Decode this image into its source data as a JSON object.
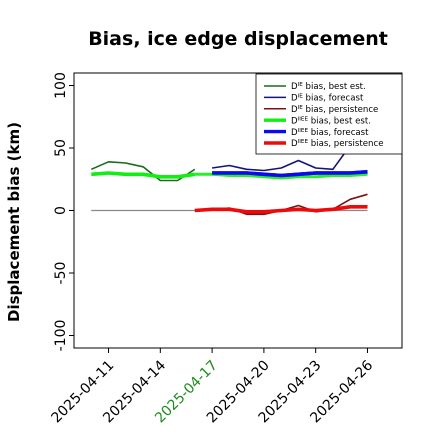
{
  "chart_data": {
    "type": "line",
    "title": "Bias, ice edge displacement",
    "xlabel": "",
    "ylabel": "Displacement bias (km)",
    "ylim": [
      -110,
      110
    ],
    "xlim": [
      "2025-04-09",
      "2025-04-28"
    ],
    "x_ticks": [
      "2025-04-11",
      "2025-04-14",
      "2025-04-17",
      "2025-04-20",
      "2025-04-23",
      "2025-04-26"
    ],
    "highlight_tick": "2025-04-17",
    "highlight_color": "#1e8c1e",
    "y_ticks": [
      -100,
      -50,
      0,
      50,
      100
    ],
    "grid": false,
    "legend_position": "top-right",
    "zero_line": {
      "y": 0,
      "x_start": "2025-04-10",
      "x_end": "2025-04-26",
      "color": "#888888"
    },
    "series": [
      {
        "name_prefix": "D",
        "name_sup": "IE",
        "name_suffix": " bias, best est.",
        "color": "#1a6b1a",
        "width": 1.6,
        "x": [
          "2025-04-10",
          "2025-04-11",
          "2025-04-12",
          "2025-04-13",
          "2025-04-14",
          "2025-04-15",
          "2025-04-16"
        ],
        "y": [
          33,
          39,
          38,
          35,
          24,
          24,
          33
        ]
      },
      {
        "name_prefix": "D",
        "name_sup": "IE",
        "name_suffix": " bias, forecast",
        "color": "#14147a",
        "width": 1.6,
        "x": [
          "2025-04-17",
          "2025-04-18",
          "2025-04-19",
          "2025-04-20",
          "2025-04-21",
          "2025-04-22",
          "2025-04-23",
          "2025-04-24",
          "2025-04-25",
          "2025-04-26"
        ],
        "y": [
          34,
          36,
          33,
          32,
          34,
          40,
          34,
          33,
          52,
          52
        ]
      },
      {
        "name_prefix": "D",
        "name_sup": "IE",
        "name_suffix": " bias, persistence",
        "color": "#7a1414",
        "width": 1.6,
        "x": [
          "2025-04-16",
          "2025-04-17",
          "2025-04-18",
          "2025-04-19",
          "2025-04-20",
          "2025-04-21",
          "2025-04-22",
          "2025-04-23",
          "2025-04-24",
          "2025-04-25",
          "2025-04-26"
        ],
        "y": [
          0,
          1,
          2,
          -3,
          -3,
          0,
          4,
          -1,
          1,
          9,
          13
        ]
      },
      {
        "name_prefix": "D",
        "name_sup": "IIEE",
        "name_suffix": " bias, best est.",
        "color": "#11ee11",
        "width": 3.6,
        "x": [
          "2025-04-10",
          "2025-04-11",
          "2025-04-12",
          "2025-04-13",
          "2025-04-14",
          "2025-04-15",
          "2025-04-16"
        ],
        "y": [
          29,
          30,
          29,
          29,
          27,
          27,
          29
        ]
      },
      {
        "name_prefix": "D",
        "name_sup": "IIEE",
        "name_suffix": " bias, forecast",
        "color": "#0a0aee",
        "width": 3.6,
        "x": [
          "2025-04-17",
          "2025-04-18",
          "2025-04-19",
          "2025-04-20",
          "2025-04-21",
          "2025-04-22",
          "2025-04-23",
          "2025-04-24",
          "2025-04-25",
          "2025-04-26"
        ],
        "y": [
          30,
          30,
          30,
          29,
          28,
          29,
          30,
          30,
          30,
          31
        ]
      },
      {
        "name_prefix": "D",
        "name_sup": "IIEE",
        "name_suffix": " bias, persistence",
        "color": "#ee0a0a",
        "width": 3.6,
        "x": [
          "2025-04-16",
          "2025-04-17",
          "2025-04-18",
          "2025-04-19",
          "2025-04-20",
          "2025-04-21",
          "2025-04-22",
          "2025-04-23",
          "2025-04-24",
          "2025-04-25",
          "2025-04-26"
        ],
        "y": [
          0,
          1,
          1,
          -1,
          -1,
          0,
          1,
          0,
          1,
          3,
          3
        ]
      }
    ],
    "overlap_series": {
      "color": "#11ee11",
      "width": 3.0,
      "x": [
        "2025-04-16",
        "2025-04-17",
        "2025-04-18",
        "2025-04-19",
        "2025-04-20",
        "2025-04-21",
        "2025-04-22",
        "2025-04-23",
        "2025-04-24",
        "2025-04-25",
        "2025-04-26"
      ],
      "y": [
        29,
        29,
        28,
        28,
        27,
        26,
        27,
        27,
        28,
        28,
        29
      ]
    }
  }
}
